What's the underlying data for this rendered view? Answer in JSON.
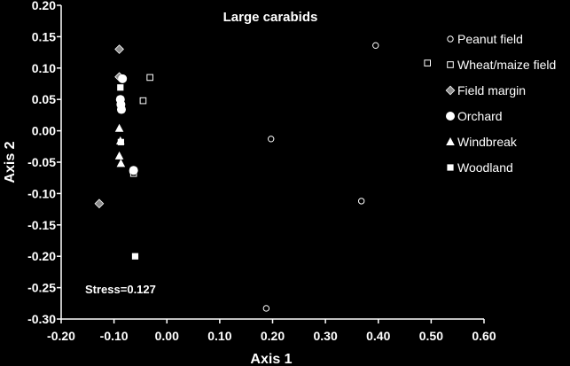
{
  "chart_data": {
    "type": "scatter",
    "title": "Large carabids",
    "xlabel": "Axis 1",
    "ylabel": "Axis 2",
    "xlim": [
      -0.2,
      0.6
    ],
    "ylim": [
      -0.3,
      0.2
    ],
    "xticks": [
      "-0.20",
      "-0.10",
      "0.00",
      "0.10",
      "0.20",
      "0.30",
      "0.40",
      "0.50",
      "0.60"
    ],
    "yticks": [
      "0.20",
      "0.15",
      "0.10",
      "0.05",
      "0.00",
      "-0.05",
      "-0.10",
      "-0.15",
      "-0.20",
      "-0.25",
      "-0.30"
    ],
    "grid": false,
    "legend_position": "top-right",
    "annotation": "Stress=0.127",
    "colors": {
      "background": "#000000",
      "foreground": "#ffffff",
      "margin_fill": "#8c8c8c"
    },
    "series": [
      {
        "name": "Peanut field",
        "marker": "circle-open",
        "points": [
          [
            0.395,
            0.136
          ],
          [
            0.197,
            -0.013
          ],
          [
            0.368,
            -0.112
          ],
          [
            0.188,
            -0.283
          ],
          [
            -0.065,
            -0.065
          ]
        ]
      },
      {
        "name": "Wheat/maize field",
        "marker": "square-open",
        "points": [
          [
            0.493,
            0.108
          ],
          [
            -0.032,
            0.085
          ],
          [
            -0.045,
            0.048
          ],
          [
            -0.063,
            -0.068
          ]
        ]
      },
      {
        "name": "Field margin",
        "marker": "diamond-gray",
        "points": [
          [
            -0.09,
            0.13
          ],
          [
            -0.09,
            0.086
          ],
          [
            -0.128,
            -0.116
          ]
        ]
      },
      {
        "name": "Orchard",
        "marker": "circle-filled",
        "points": [
          [
            -0.084,
            0.083
          ],
          [
            -0.088,
            0.05
          ],
          [
            -0.087,
            0.042
          ],
          [
            -0.086,
            0.034
          ],
          [
            -0.063,
            -0.063
          ]
        ]
      },
      {
        "name": "Windbreak",
        "marker": "triangle-filled",
        "points": [
          [
            -0.09,
            0.004
          ],
          [
            -0.088,
            -0.016
          ],
          [
            -0.09,
            -0.04
          ],
          [
            -0.087,
            -0.052
          ]
        ]
      },
      {
        "name": "Woodland",
        "marker": "square-filled",
        "points": [
          [
            -0.088,
            0.069
          ],
          [
            -0.087,
            -0.018
          ],
          [
            -0.06,
            -0.2
          ]
        ]
      }
    ]
  }
}
